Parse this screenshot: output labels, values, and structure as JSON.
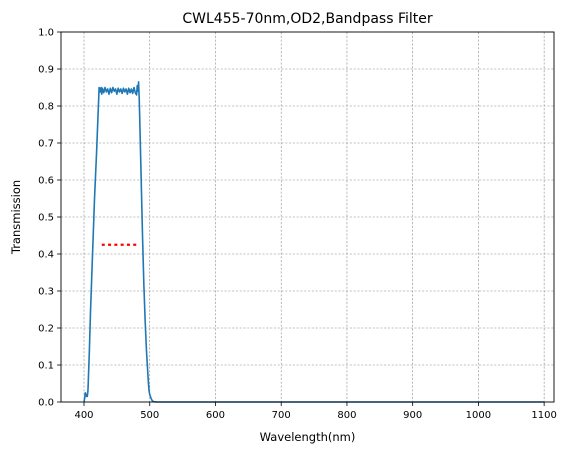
{
  "chart_data": {
    "type": "line",
    "title": "CWL455-70nm,OD2,Bandpass Filter",
    "xlabel": "Wavelength(nm)",
    "ylabel": "Transmission",
    "xlim": [
      365,
      1115
    ],
    "ylim": [
      0,
      1.0
    ],
    "xticks": [
      400,
      500,
      600,
      700,
      800,
      900,
      1000,
      1100
    ],
    "yticks": [
      0.0,
      0.1,
      0.2,
      0.3,
      0.4,
      0.5,
      0.6,
      0.7,
      0.8,
      0.9,
      1.0
    ],
    "grid": true,
    "series": [
      {
        "color": "#1f77b4",
        "style": "solid",
        "x": [
          400,
          401,
          402,
          403,
          404,
          405,
          406,
          408,
          410,
          413,
          416,
          419,
          421,
          423,
          425,
          426,
          427,
          428,
          430,
          432,
          434,
          436,
          438,
          440,
          442,
          444,
          446,
          448,
          450,
          452,
          454,
          456,
          458,
          460,
          462,
          464,
          466,
          468,
          470,
          472,
          474,
          476,
          478,
          480,
          481,
          482,
          483,
          484,
          485,
          487,
          489,
          491,
          493,
          495,
          497,
          498,
          499,
          500,
          501,
          502,
          503,
          504,
          506,
          508,
          510,
          515,
          520,
          530,
          600,
          700,
          800,
          900,
          1000,
          1100
        ],
        "y": [
          0.0,
          0.01,
          0.025,
          0.02,
          0.015,
          0.015,
          0.03,
          0.13,
          0.25,
          0.4,
          0.55,
          0.67,
          0.76,
          0.85,
          0.838,
          0.85,
          0.832,
          0.848,
          0.836,
          0.85,
          0.838,
          0.846,
          0.832,
          0.848,
          0.836,
          0.85,
          0.84,
          0.846,
          0.832,
          0.848,
          0.838,
          0.846,
          0.834,
          0.848,
          0.838,
          0.846,
          0.832,
          0.848,
          0.836,
          0.846,
          0.834,
          0.85,
          0.836,
          0.83,
          0.855,
          0.84,
          0.865,
          0.82,
          0.75,
          0.6,
          0.45,
          0.32,
          0.22,
          0.14,
          0.08,
          0.05,
          0.03,
          0.02,
          0.015,
          0.01,
          0.006,
          0.003,
          0.001,
          0.0005,
          0.0,
          0.0,
          0.0,
          0.0,
          0.0,
          0.0,
          0.0,
          0.0,
          0.0,
          0.0
        ]
      },
      {
        "color": "#ff0000",
        "style": "dotted",
        "x": [
          427,
          482
        ],
        "y": [
          0.425,
          0.425
        ]
      }
    ]
  }
}
